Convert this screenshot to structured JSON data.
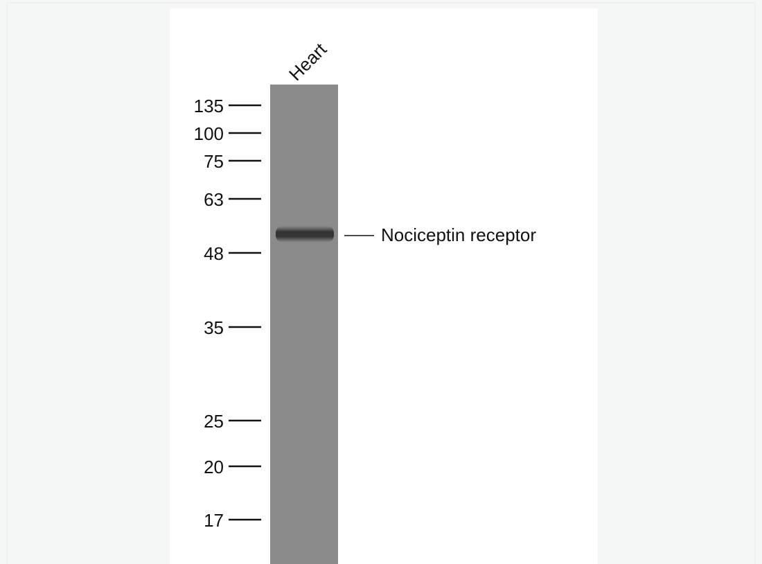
{
  "lane_label": "Heart",
  "markers": [
    135,
    100,
    75,
    63,
    48,
    35,
    25,
    20,
    17
  ],
  "band_label": "Nociceptin receptor"
}
